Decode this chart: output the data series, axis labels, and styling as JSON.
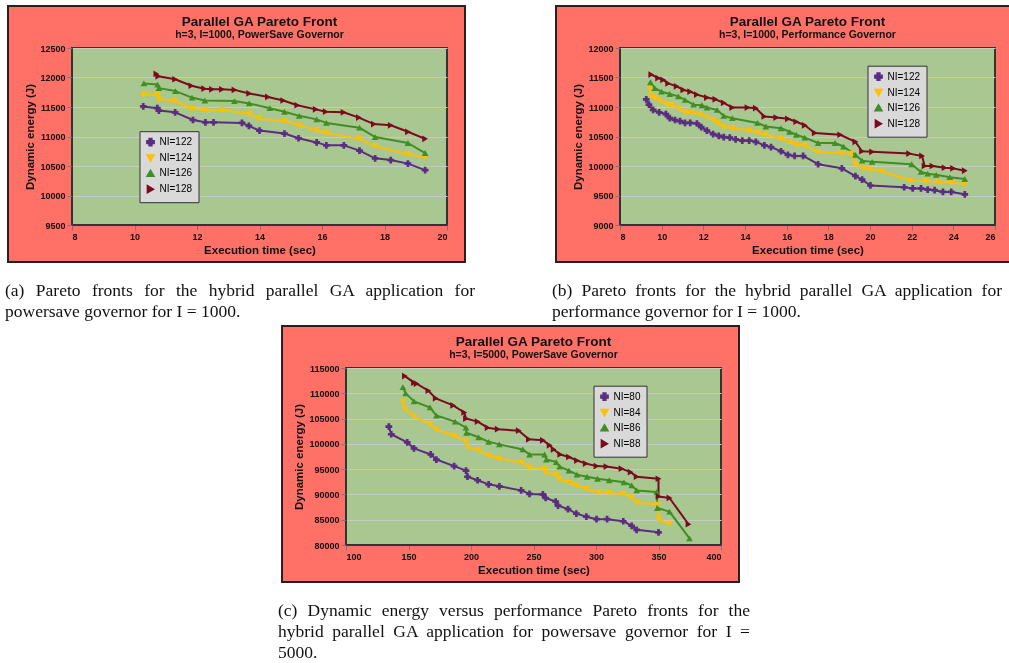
{
  "chart_data": [
    {
      "type": "line",
      "title": "Parallel GA Pareto Front",
      "subtitle": "h=3, I=1000, PowerSave Governor",
      "xlabel": "Execution time (sec)",
      "ylabel": "Dynamic energy (J)",
      "xlim": [
        8,
        20
      ],
      "xticks": [
        8,
        10,
        12,
        14,
        16,
        18,
        20
      ],
      "ylim": [
        9500,
        12500
      ],
      "yticks": [
        9500,
        10000,
        10500,
        11000,
        11500,
        12000,
        12500
      ],
      "grid": "y",
      "legend": "bottom left",
      "annotations": [
        "(a) Pareto fronts for the hybrid parallel GA application for powersave governor for I = 1000."
      ],
      "series": [
        {
          "name": "NI=122",
          "color": "#5a2d82",
          "marker": "cross",
          "x": [
            10.28,
            10.73,
            10.78,
            11.3,
            11.87,
            12.27,
            12.53,
            13.44,
            13.66,
            14.0,
            14.8,
            15.25,
            15.83,
            16.14,
            16.7,
            17.2,
            17.7,
            18.2,
            18.75,
            19.3
          ],
          "values": [
            11510,
            11480,
            11440,
            11410,
            11280,
            11240,
            11240,
            11230,
            11180,
            11100,
            11050,
            10970,
            10900,
            10850,
            10850,
            10760,
            10630,
            10600,
            10540,
            10430
          ]
        },
        {
          "name": "NI=124",
          "color": "#ffc000",
          "marker": "triangle",
          "x": [
            10.28,
            10.74,
            10.78,
            11.28,
            11.84,
            12.25,
            12.8,
            13.67,
            13.97,
            14.8,
            15.27,
            15.82,
            16.14,
            17.2,
            17.7,
            18.75,
            19.3
          ],
          "values": [
            11710,
            11710,
            11630,
            11610,
            11470,
            11450,
            11450,
            11390,
            11300,
            11260,
            11190,
            11110,
            11060,
            10960,
            10840,
            10700,
            10640
          ]
        },
        {
          "name": "NI=126",
          "color": "#3f8f22",
          "marker": "triangle",
          "x": [
            10.3,
            10.74,
            10.78,
            11.31,
            11.84,
            12.25,
            13.2,
            13.67,
            14.33,
            14.8,
            15.27,
            15.83,
            16.14,
            17.2,
            17.7,
            18.75,
            19.3
          ],
          "values": [
            11900,
            11880,
            11820,
            11770,
            11660,
            11610,
            11600,
            11560,
            11480,
            11420,
            11350,
            11290,
            11230,
            11150,
            10990,
            10890,
            10720
          ]
        },
        {
          "name": "NI=128",
          "color": "#7a0a1e",
          "marker": "triangle",
          "x": [
            10.7,
            10.76,
            11.3,
            11.82,
            12.23,
            12.48,
            12.8,
            13.2,
            13.67,
            14.27,
            14.76,
            15.21,
            15.8,
            16.12,
            16.69,
            17.18,
            17.66,
            18.2,
            18.75,
            19.3
          ],
          "values": [
            12060,
            12020,
            11970,
            11860,
            11810,
            11800,
            11800,
            11790,
            11730,
            11670,
            11610,
            11530,
            11460,
            11420,
            11410,
            11320,
            11210,
            11190,
            11080,
            10960
          ]
        }
      ]
    },
    {
      "type": "line",
      "title": "Parallel GA Pareto Front",
      "subtitle": "h=3, I=1000, Performance Governor",
      "xlabel": "Execution time (sec)",
      "ylabel": "Dynamic energy (J)",
      "xlim": [
        8,
        26
      ],
      "xticks": [
        8,
        10,
        12,
        14,
        16,
        18,
        20,
        22,
        24,
        26
      ],
      "ylim": [
        9000,
        12000
      ],
      "yticks": [
        9000,
        9500,
        10000,
        10500,
        11000,
        11500,
        12000
      ],
      "grid": "y",
      "legend": "top right",
      "annotations": [
        "(b) Pareto fronts for the hybrid parallel GA application for performance governor for I = 1000."
      ],
      "series": [
        {
          "name": "NI=122",
          "color": "#5a2d82",
          "marker": "cross",
          "x": [
            9.26,
            9.39,
            9.59,
            9.88,
            10.2,
            10.39,
            10.64,
            10.88,
            11.12,
            11.37,
            11.69,
            11.9,
            12.17,
            12.47,
            12.74,
            12.98,
            13.27,
            13.55,
            13.87,
            14.2,
            14.52,
            14.93,
            15.25,
            15.73,
            16.06,
            16.38,
            16.79,
            17.51,
            18.65,
            19.3,
            19.62,
            20.02,
            21.64,
            22.05,
            22.45,
            22.77,
            23.1,
            23.5,
            23.9,
            24.55
          ],
          "values": [
            11130,
            11040,
            10950,
            10910,
            10880,
            10810,
            10780,
            10760,
            10730,
            10730,
            10720,
            10660,
            10600,
            10540,
            10510,
            10490,
            10480,
            10450,
            10430,
            10430,
            10410,
            10350,
            10320,
            10250,
            10190,
            10170,
            10170,
            10030,
            9960,
            9830,
            9770,
            9670,
            9640,
            9620,
            9620,
            9600,
            9590,
            9560,
            9560,
            9520
          ]
        },
        {
          "name": "NI=124",
          "color": "#ffc000",
          "marker": "triangle",
          "x": [
            9.42,
            9.5,
            9.67,
            9.91,
            10.23,
            10.48,
            10.8,
            11.12,
            11.45,
            11.85,
            12.17,
            12.5,
            12.69,
            12.98,
            13.39,
            14.2,
            14.6,
            15.0,
            15.73,
            16.14,
            16.46,
            16.87,
            17.51,
            18.65,
            19.1,
            19.3,
            19.7,
            20.02,
            20.56,
            21.96,
            22.7,
            23.26,
            23.9,
            24.55
          ],
          "values": [
            11310,
            11180,
            11150,
            11110,
            11050,
            11030,
            10980,
            10910,
            10900,
            10880,
            10820,
            10780,
            10730,
            10660,
            10640,
            10600,
            10570,
            10530,
            10460,
            10410,
            10360,
            10350,
            10240,
            10210,
            10210,
            10030,
            9960,
            9940,
            9910,
            9750,
            9740,
            9730,
            9720,
            9690
          ]
        },
        {
          "name": "NI=126",
          "color": "#3f8f22",
          "marker": "triangle",
          "x": [
            9.46,
            9.67,
            9.99,
            10.39,
            10.8,
            11.12,
            11.53,
            11.93,
            12.17,
            12.66,
            12.98,
            13.39,
            14.6,
            15.0,
            15.73,
            16.14,
            16.46,
            16.87,
            17.51,
            18.32,
            18.73,
            19.3,
            19.62,
            20.1,
            22.0,
            22.45,
            22.77,
            23.18,
            23.83,
            24.55
          ],
          "values": [
            11420,
            11320,
            11260,
            11220,
            11180,
            11120,
            11040,
            11030,
            10990,
            10950,
            10850,
            10810,
            10730,
            10670,
            10640,
            10580,
            10530,
            10480,
            10390,
            10390,
            10330,
            10190,
            10090,
            10070,
            10030,
            9900,
            9870,
            9850,
            9810,
            9780
          ]
        },
        {
          "name": "NI=128",
          "color": "#7a0a1e",
          "marker": "triangle",
          "x": [
            9.5,
            9.83,
            10.07,
            10.31,
            10.72,
            11.04,
            11.37,
            11.69,
            12.17,
            12.58,
            12.98,
            13.39,
            14.12,
            14.52,
            14.93,
            15.5,
            16.06,
            16.46,
            16.87,
            17.35,
            18.57,
            19.3,
            19.62,
            20.1,
            21.88,
            22.5,
            22.62,
            23.0,
            23.58,
            23.99,
            24.55
          ],
          "values": [
            11550,
            11490,
            11460,
            11400,
            11350,
            11290,
            11260,
            11210,
            11160,
            11130,
            11070,
            10990,
            10990,
            10980,
            10840,
            10820,
            10800,
            10750,
            10690,
            10560,
            10530,
            10410,
            10250,
            10240,
            10210,
            10170,
            10000,
            10000,
            9970,
            9960,
            9920
          ]
        }
      ]
    },
    {
      "type": "line",
      "title": "Parallel GA Pareto Front",
      "subtitle": "h=3, I=5000, PowerSave Governor",
      "xlabel": "Execution time (sec)",
      "ylabel": "Dynamic energy (J)",
      "xlim": [
        100,
        400
      ],
      "xticks": [
        100,
        150,
        200,
        250,
        300,
        350,
        400
      ],
      "ylim": [
        80000,
        115000
      ],
      "yticks": [
        80000,
        85000,
        90000,
        95000,
        100000,
        105000,
        110000,
        115000
      ],
      "grid": "y",
      "legend": "top right",
      "annotations": [
        "(c) Dynamic energy versus performance Pareto fronts for the hybrid parallel GA application for powersave governor for I = 5000."
      ],
      "series": [
        {
          "name": "NI=80",
          "color": "#5a2d82",
          "marker": "cross",
          "x": [
            134.3,
            136.2,
            149.0,
            154.4,
            167.8,
            172.3,
            186.5,
            196.0,
            197.2,
            205.3,
            214.1,
            222.7,
            240.1,
            246.8,
            257.5,
            259.7,
            267.7,
            269.6,
            277.6,
            284.3,
            292.3,
            300.4,
            308.9,
            321.8,
            328.5,
            332.5,
            350.0
          ],
          "values": [
            103400,
            101900,
            100300,
            99100,
            97900,
            96900,
            95600,
            94700,
            93500,
            92800,
            92000,
            91600,
            90800,
            90100,
            90000,
            89300,
            88600,
            87800,
            87100,
            86200,
            85600,
            85100,
            85100,
            84700,
            83800,
            83000,
            82500
          ]
        },
        {
          "name": "NI=84",
          "color": "#ffc000",
          "marker": "triangle",
          "x": [
            145.5,
            147.1,
            154.4,
            167.2,
            172.3,
            186.5,
            196.0,
            197.2,
            206.1,
            214.1,
            222.2,
            240.9,
            246.8,
            258.9,
            259.7,
            268.2,
            270.4,
            278.9,
            284.3,
            292.3,
            301.7,
            309.8,
            321.8,
            328.5,
            333.1,
            349.4,
            350.0,
            358.8
          ],
          "values": [
            108400,
            106900,
            105400,
            103900,
            102800,
            101600,
            100600,
            99300,
            98800,
            97600,
            97100,
            96300,
            95300,
            95100,
            94300,
            93900,
            93000,
            92300,
            91800,
            91100,
            90400,
            90300,
            90100,
            89400,
            88300,
            88000,
            85000,
            84200
          ]
        },
        {
          "name": "NI=86",
          "color": "#3f8f22",
          "marker": "triangle",
          "x": [
            145.5,
            147.7,
            154.4,
            167.2,
            172.3,
            187.3,
            196.0,
            196.4,
            206.1,
            214.1,
            222.7,
            241.4,
            246.8,
            258.9,
            260.2,
            268.2,
            270.9,
            278.4,
            284.8,
            292.9,
            301.2,
            310.6,
            322.3,
            328.5,
            332.5,
            348.6,
            349.1,
            358.8,
            374.8
          ],
          "values": [
            111200,
            110000,
            108400,
            107200,
            105600,
            104400,
            103200,
            102200,
            101300,
            100400,
            99900,
            98900,
            97900,
            97900,
            96900,
            96400,
            95500,
            94700,
            93900,
            93500,
            93100,
            92800,
            92400,
            91800,
            90800,
            90500,
            87300,
            86600,
            81300
          ]
        },
        {
          "name": "NI=88",
          "color": "#7a0a1e",
          "marker": "triangle",
          "x": [
            147.1,
            154.4,
            156.5,
            165.9,
            171.8,
            185.7,
            194.6,
            196.0,
            205.3,
            213.3,
            221.4,
            238.2,
            246.3,
            257.5,
            262.9,
            266.1,
            271.4,
            278.4,
            284.8,
            291.8,
            300.4,
            308.4,
            320.4,
            327.7,
            332.5,
            350.0,
            350.0,
            358.8,
            374.0
          ],
          "values": [
            113400,
            112100,
            111900,
            110500,
            109000,
            107600,
            106200,
            105000,
            104400,
            103200,
            102900,
            102600,
            100900,
            100700,
            99700,
            98900,
            97900,
            97400,
            96700,
            96100,
            95600,
            95500,
            95100,
            94400,
            93500,
            93100,
            89600,
            89300,
            84100
          ]
        }
      ]
    }
  ]
}
